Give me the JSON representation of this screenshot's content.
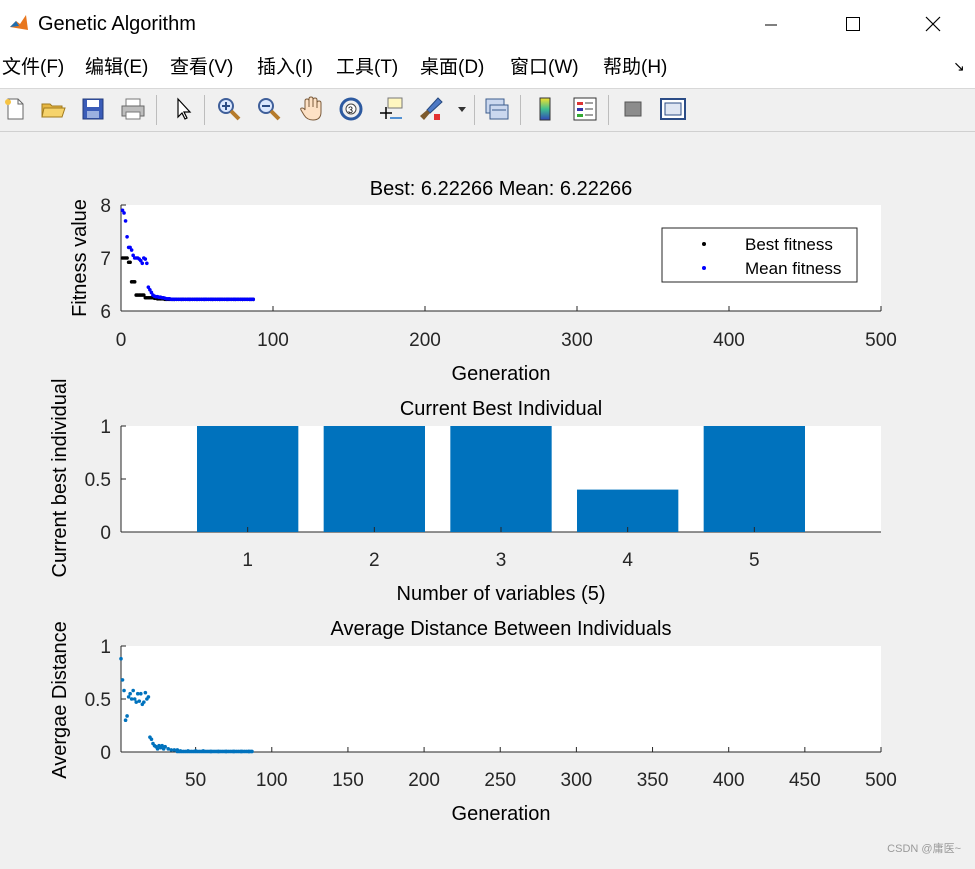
{
  "window": {
    "title": "Genetic Algorithm"
  },
  "menu": {
    "items": [
      {
        "label": "文件(F)"
      },
      {
        "label": "编辑(E)"
      },
      {
        "label": "查看(V)"
      },
      {
        "label": "插入(I)"
      },
      {
        "label": "工具(T)"
      },
      {
        "label": "桌面(D)"
      },
      {
        "label": "窗口(W)"
      },
      {
        "label": "帮助(H)"
      }
    ]
  },
  "toolbar": {
    "icons": [
      "new-file-icon",
      "open-folder-icon",
      "save-icon",
      "print-icon",
      "pointer-icon",
      "zoom-in-icon",
      "zoom-out-icon",
      "pan-hand-icon",
      "rotate-3d-icon",
      "data-cursor-icon",
      "brush-icon",
      "export-icon",
      "colorbar-icon",
      "legend-icon",
      "hide-plot-tools-icon",
      "show-plot-tools-icon"
    ]
  },
  "watermark": "CSDN @庸医~",
  "colors": {
    "best": "#000000",
    "mean": "#0000ff",
    "bar": "#0072bd",
    "distance": "#0072bd"
  },
  "chart_data": [
    {
      "type": "scatter",
      "title": "Best: 6.22266 Mean: 6.22266",
      "xlabel": "Generation",
      "ylabel": "Fitness value",
      "xlim": [
        0,
        500
      ],
      "ylim": [
        6,
        8
      ],
      "xticks": [
        "0",
        "100",
        "200",
        "300",
        "400",
        "500"
      ],
      "yticks": [
        "6",
        "7",
        "8"
      ],
      "legend": {
        "placement": "top-right",
        "entries": [
          "Best fitness",
          "Mean fitness"
        ]
      },
      "series": [
        {
          "name": "Best fitness",
          "color": "#000000",
          "x": [
            1,
            2,
            3,
            4,
            5,
            6,
            7,
            8,
            9,
            10,
            11,
            12,
            13,
            14,
            15,
            16,
            17,
            18,
            19,
            20,
            21,
            22,
            23,
            24,
            25,
            26,
            27,
            28,
            29,
            30,
            31,
            32,
            33,
            34,
            35,
            40,
            45,
            50,
            55,
            60,
            65,
            70,
            75,
            80,
            85,
            87
          ],
          "y": [
            7.0,
            7.0,
            7.0,
            7.0,
            6.92,
            6.92,
            6.55,
            6.55,
            6.55,
            6.3,
            6.3,
            6.3,
            6.3,
            6.3,
            6.3,
            6.25,
            6.25,
            6.25,
            6.25,
            6.25,
            6.25,
            6.24,
            6.24,
            6.23,
            6.23,
            6.23,
            6.23,
            6.23,
            6.22,
            6.22,
            6.22,
            6.22,
            6.22,
            6.22,
            6.22,
            6.22,
            6.22,
            6.22,
            6.22,
            6.22,
            6.22,
            6.22,
            6.22,
            6.22,
            6.22,
            6.22
          ]
        },
        {
          "name": "Mean fitness",
          "color": "#0000ff",
          "x": [
            1,
            2,
            3,
            4,
            5,
            6,
            7,
            8,
            9,
            10,
            11,
            12,
            13,
            14,
            15,
            16,
            17,
            18,
            19,
            20,
            21,
            22,
            23,
            24,
            25,
            26,
            27,
            28,
            29,
            30,
            31,
            32,
            33,
            34,
            35,
            40,
            45,
            50,
            55,
            60,
            65,
            70,
            75,
            80,
            85,
            87
          ],
          "y": [
            7.9,
            7.85,
            7.7,
            7.4,
            7.2,
            7.2,
            7.15,
            7.05,
            7.0,
            7.0,
            7.0,
            6.98,
            6.95,
            6.9,
            7.0,
            6.98,
            6.9,
            6.45,
            6.4,
            6.35,
            6.3,
            6.28,
            6.27,
            6.27,
            6.26,
            6.26,
            6.25,
            6.25,
            6.24,
            6.23,
            6.23,
            6.23,
            6.22,
            6.22,
            6.22,
            6.22,
            6.22,
            6.22,
            6.22,
            6.22,
            6.22,
            6.22,
            6.22,
            6.22,
            6.22,
            6.22
          ]
        }
      ]
    },
    {
      "type": "bar",
      "title": "Current Best Individual",
      "xlabel": "Number of variables (5)",
      "ylabel": "Current best individual",
      "categories": [
        "1",
        "2",
        "3",
        "4",
        "5"
      ],
      "values": [
        1,
        1,
        1,
        0.4,
        1
      ],
      "ylim": [
        0,
        1
      ],
      "yticks": [
        "0",
        "0.5",
        "1"
      ]
    },
    {
      "type": "scatter",
      "title": "Average Distance Between Individuals",
      "xlabel": "Generation",
      "ylabel": "Avergae Distance",
      "xlim": [
        1,
        500
      ],
      "ylim": [
        0,
        1
      ],
      "xticks": [
        "50",
        "100",
        "150",
        "200",
        "250",
        "300",
        "350",
        "400",
        "450",
        "500"
      ],
      "yticks": [
        "0",
        "0.5",
        "1"
      ],
      "series": [
        {
          "color": "#0072bd",
          "x": [
            1,
            2,
            3,
            4,
            5,
            6,
            7,
            8,
            9,
            10,
            11,
            12,
            13,
            14,
            15,
            16,
            17,
            18,
            19,
            20,
            21,
            22,
            23,
            24,
            25,
            26,
            27,
            28,
            29,
            30,
            32,
            34,
            36,
            38,
            40,
            45,
            50,
            55,
            60,
            65,
            70,
            75,
            80,
            85,
            87
          ],
          "y": [
            0.88,
            0.68,
            0.58,
            0.3,
            0.34,
            0.52,
            0.55,
            0.5,
            0.58,
            0.5,
            0.47,
            0.55,
            0.48,
            0.55,
            0.45,
            0.47,
            0.56,
            0.5,
            0.52,
            0.14,
            0.12,
            0.08,
            0.06,
            0.05,
            0.03,
            0.06,
            0.04,
            0.06,
            0.03,
            0.05,
            0.03,
            0.02,
            0.02,
            0.02,
            0.01,
            0.01,
            0.01,
            0.01,
            0.005,
            0.005,
            0.005,
            0.005,
            0.005,
            0.005,
            0.005
          ]
        }
      ]
    }
  ]
}
